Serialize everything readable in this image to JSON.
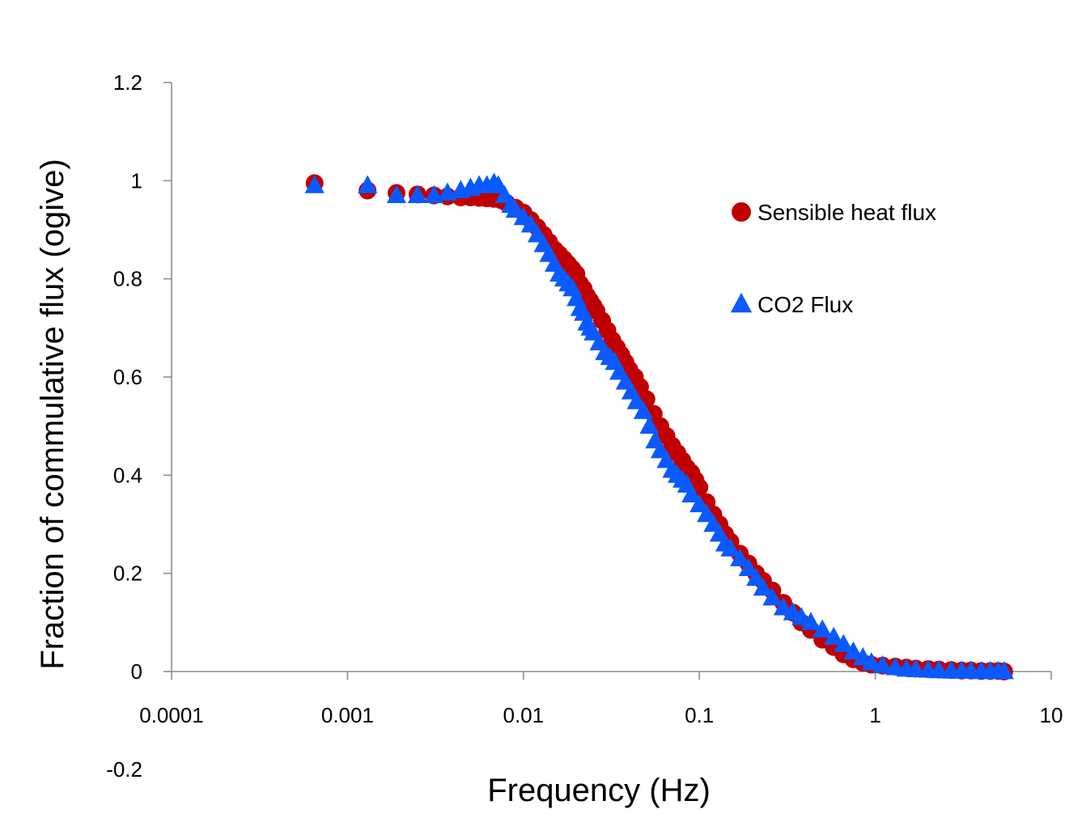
{
  "chart_data": {
    "type": "scatter",
    "title": "",
    "xlabel": "Frequency (Hz)",
    "ylabel": "Fraction of commulative flux (ogive)",
    "x_scale": "log",
    "xlim": [
      0.0001,
      10
    ],
    "ylim": [
      0,
      1.2
    ],
    "x_tick_labels": [
      "0.0001",
      "0.001",
      "0.01",
      "0.1",
      "1",
      "10"
    ],
    "x_ticks": [
      0.0001,
      0.001,
      0.01,
      0.1,
      1,
      10
    ],
    "y_tick_labels": [
      "1.2",
      "1",
      "0.8",
      "0.6",
      "0.4",
      "0.2",
      "0",
      "-0.2"
    ],
    "y_ticks": [
      1.2,
      1,
      0.8,
      0.6,
      0.4,
      0.2,
      0,
      -0.2
    ],
    "grid": false,
    "legend_position": "right",
    "series": [
      {
        "name": "Sensible heat flux",
        "marker": "circle",
        "color": "#c00000",
        "x": [
          0.00065,
          0.0013,
          0.0019,
          0.0025,
          0.0031,
          0.0037,
          0.0044,
          0.005,
          0.0056,
          0.0062,
          0.0068,
          0.0075,
          0.008,
          0.009,
          0.01,
          0.011,
          0.012,
          0.013,
          0.014,
          0.015,
          0.016,
          0.017,
          0.018,
          0.019,
          0.02,
          0.021,
          0.022,
          0.023,
          0.024,
          0.025,
          0.026,
          0.028,
          0.03,
          0.032,
          0.034,
          0.036,
          0.038,
          0.04,
          0.043,
          0.046,
          0.05,
          0.055,
          0.06,
          0.065,
          0.07,
          0.075,
          0.08,
          0.085,
          0.09,
          0.095,
          0.1,
          0.11,
          0.12,
          0.13,
          0.14,
          0.15,
          0.17,
          0.19,
          0.21,
          0.23,
          0.26,
          0.3,
          0.34,
          0.38,
          0.43,
          0.5,
          0.58,
          0.66,
          0.75,
          0.85,
          0.95,
          1.1,
          1.3,
          1.5,
          1.7,
          2.0,
          2.3,
          2.7,
          3.1,
          3.5,
          4.0,
          4.5,
          5.0,
          5.4
        ],
        "y": [
          0.995,
          0.98,
          0.975,
          0.972,
          0.97,
          0.968,
          0.966,
          0.966,
          0.965,
          0.964,
          0.963,
          0.96,
          0.955,
          0.945,
          0.935,
          0.92,
          0.905,
          0.89,
          0.875,
          0.86,
          0.85,
          0.84,
          0.83,
          0.82,
          0.81,
          0.79,
          0.78,
          0.765,
          0.755,
          0.745,
          0.735,
          0.715,
          0.695,
          0.675,
          0.66,
          0.645,
          0.63,
          0.615,
          0.6,
          0.58,
          0.555,
          0.525,
          0.5,
          0.48,
          0.46,
          0.445,
          0.43,
          0.415,
          0.405,
          0.39,
          0.375,
          0.345,
          0.32,
          0.3,
          0.28,
          0.265,
          0.24,
          0.22,
          0.2,
          0.185,
          0.165,
          0.14,
          0.12,
          0.1,
          0.085,
          0.065,
          0.05,
          0.035,
          0.025,
          0.018,
          0.014,
          0.012,
          0.01,
          0.008,
          0.006,
          0.005,
          0.004,
          0.003,
          0.002,
          0.002,
          0.001,
          0.001,
          0.001,
          0.0
        ]
      },
      {
        "name": "CO2 Flux",
        "marker": "triangle",
        "color": "#0a5aff",
        "x": [
          0.00065,
          0.0013,
          0.0019,
          0.0025,
          0.0031,
          0.0037,
          0.0044,
          0.005,
          0.0056,
          0.0062,
          0.0068,
          0.0072,
          0.0078,
          0.0085,
          0.009,
          0.01,
          0.011,
          0.012,
          0.013,
          0.014,
          0.015,
          0.016,
          0.017,
          0.018,
          0.019,
          0.02,
          0.021,
          0.022,
          0.023,
          0.024,
          0.025,
          0.027,
          0.029,
          0.031,
          0.033,
          0.035,
          0.038,
          0.041,
          0.044,
          0.048,
          0.052,
          0.056,
          0.06,
          0.065,
          0.07,
          0.075,
          0.08,
          0.085,
          0.09,
          0.1,
          0.11,
          0.12,
          0.13,
          0.14,
          0.15,
          0.17,
          0.19,
          0.21,
          0.23,
          0.26,
          0.3,
          0.34,
          0.38,
          0.43,
          0.5,
          0.58,
          0.66,
          0.75,
          0.85,
          0.95,
          1.1,
          1.3,
          1.5,
          1.7,
          2.0,
          2.3,
          2.7,
          3.1,
          3.5,
          4.0,
          4.5,
          5.0,
          5.4
        ],
        "y": [
          0.99,
          0.99,
          0.97,
          0.97,
          0.97,
          0.975,
          0.98,
          0.985,
          0.99,
          0.99,
          0.995,
          0.99,
          0.97,
          0.95,
          0.94,
          0.925,
          0.91,
          0.89,
          0.87,
          0.85,
          0.83,
          0.81,
          0.8,
          0.79,
          0.78,
          0.76,
          0.74,
          0.73,
          0.71,
          0.7,
          0.69,
          0.67,
          0.65,
          0.64,
          0.63,
          0.61,
          0.59,
          0.57,
          0.55,
          0.53,
          0.5,
          0.47,
          0.45,
          0.43,
          0.41,
          0.4,
          0.39,
          0.38,
          0.36,
          0.34,
          0.32,
          0.3,
          0.28,
          0.26,
          0.25,
          0.23,
          0.21,
          0.19,
          0.17,
          0.15,
          0.13,
          0.12,
          0.11,
          0.1,
          0.085,
          0.07,
          0.055,
          0.04,
          0.028,
          0.018,
          0.012,
          0.008,
          0.005,
          0.004,
          0.003,
          0.002,
          0.001,
          0.001,
          0.001,
          0.0,
          0.0,
          0.0,
          0.0
        ]
      }
    ]
  }
}
